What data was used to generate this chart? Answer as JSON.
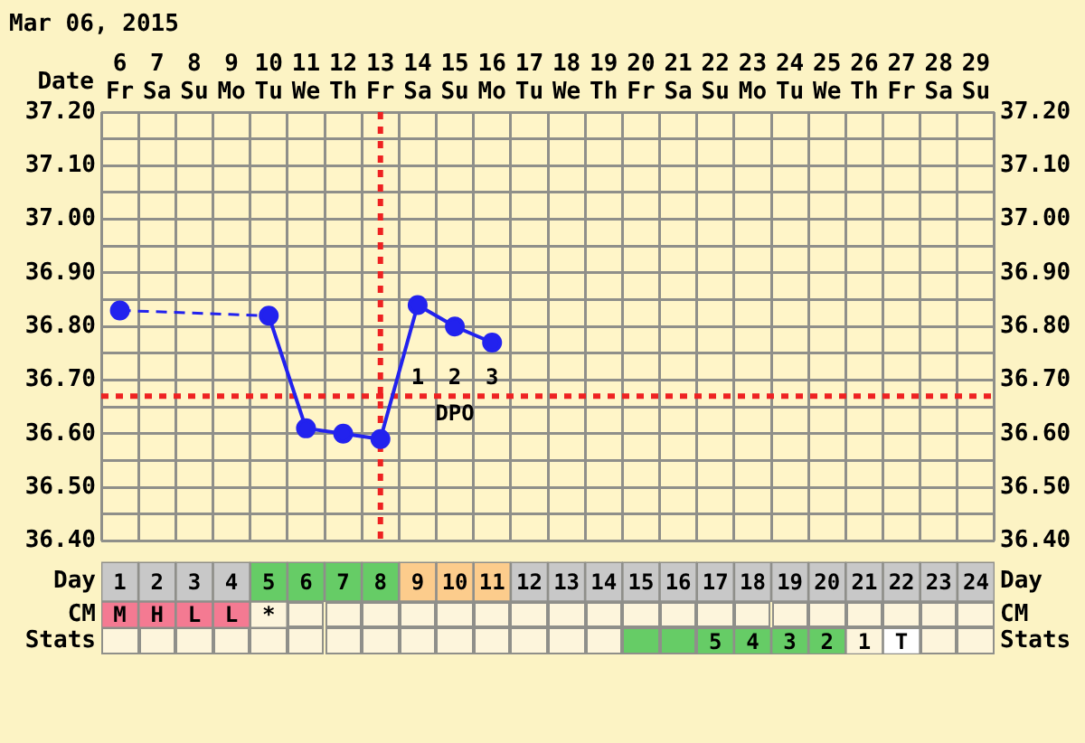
{
  "chart_data": [
    {
      "type": "line",
      "title": "Mar 06, 2015",
      "xlabel": "Date",
      "categories": [
        "6 Fr",
        "7 Sa",
        "8 Su",
        "9 Mo",
        "10 Tu",
        "11 We",
        "12 Th",
        "13 Fr",
        "14 Sa",
        "15 Su",
        "16 Mo",
        "17 Tu",
        "18 We",
        "19 Th",
        "20 Fr",
        "21 Sa",
        "22 Su",
        "23 Mo",
        "24 Tu",
        "25 We",
        "26 Th",
        "27 Fr",
        "28 Sa",
        "29 Su"
      ],
      "series": [
        {
          "color": "#2222ee",
          "values": [
            36.83,
            null,
            null,
            null,
            36.82,
            36.61,
            36.6,
            36.59,
            36.84,
            36.8,
            36.77,
            null,
            null,
            null,
            null,
            null,
            null,
            null,
            null,
            null,
            null,
            null,
            null,
            null
          ]
        }
      ],
      "ylim": [
        36.4,
        37.2
      ],
      "yticks": [
        {
          "value": 36.4,
          "label": "36.40"
        },
        {
          "value": 36.45,
          "label": null
        },
        {
          "value": 36.5,
          "label": "36.50"
        },
        {
          "value": 36.55,
          "label": null
        },
        {
          "value": 36.6,
          "label": "36.60"
        },
        {
          "value": 36.65,
          "label": null
        },
        {
          "value": 36.7,
          "label": "36.70"
        },
        {
          "value": 36.75,
          "label": null
        },
        {
          "value": 36.8,
          "label": "36.80"
        },
        {
          "value": 36.85,
          "label": null
        },
        {
          "value": 36.9,
          "label": "36.90"
        },
        {
          "value": 36.95,
          "label": null
        },
        {
          "value": 37,
          "label": "37.00"
        },
        {
          "value": 37.05,
          "label": null
        },
        {
          "value": 37.1,
          "label": "37.10"
        },
        {
          "value": 37.15,
          "label": null
        },
        {
          "value": 37.2,
          "label": "37.20"
        }
      ],
      "y2lim": [
        36.4,
        37.2
      ],
      "y2ticks": [
        {
          "value": 36.4,
          "label": "36.40"
        },
        {
          "value": 36.45,
          "label": null
        },
        {
          "value": 36.5,
          "label": "36.50"
        },
        {
          "value": 36.55,
          "label": null
        },
        {
          "value": 36.6,
          "label": "36.60"
        },
        {
          "value": 36.65,
          "label": null
        },
        {
          "value": 36.7,
          "label": "36.70"
        },
        {
          "value": 36.75,
          "label": null
        },
        {
          "value": 36.8,
          "label": "36.80"
        },
        {
          "value": 36.85,
          "label": null
        },
        {
          "value": 36.9,
          "label": "36.90"
        },
        {
          "value": 36.95,
          "label": null
        },
        {
          "value": 37,
          "label": "37.00"
        },
        {
          "value": 37.05,
          "label": null
        },
        {
          "value": 37.1,
          "label": "37.10"
        },
        {
          "value": 37.15,
          "label": null
        },
        {
          "value": 37.2,
          "label": "37.20"
        }
      ],
      "grid": true,
      "legend": false,
      "marker": "circle",
      "ref_lines": [
        {
          "axis": "x",
          "value": "13 Fr",
          "color": "#ee2222",
          "line_style": "dotted"
        },
        {
          "axis": "y",
          "value": 36.67,
          "color": "#ee2222",
          "line_style": "dotted"
        }
      ],
      "annotations": [
        {
          "text": "1",
          "x": "14 Sa",
          "y": 36.67
        },
        {
          "text": "2",
          "x": "15 Su",
          "y": 36.67
        },
        {
          "text": "3",
          "x": "16 Mo",
          "y": 36.67
        },
        {
          "text": "DPO",
          "x": "15 Su",
          "y": 36.67
        }
      ]
    },
    {
      "type": "heatmap",
      "categories": [
        null,
        null,
        null,
        null,
        null,
        null,
        null,
        null,
        null,
        null,
        null,
        null,
        null,
        null,
        null,
        null,
        null,
        null,
        null,
        null,
        null,
        null,
        null,
        null
      ],
      "y_categories": [
        "Day",
        "CM",
        "Stats"
      ],
      "y2_categories": [
        "Day",
        "CM",
        "Stats"
      ],
      "cells": [
        [
          null,
          null,
          null,
          null,
          null,
          null,
          null,
          null,
          null,
          null,
          null,
          null,
          null,
          null,
          null,
          null,
          null,
          null,
          null,
          null,
          null,
          null,
          null,
          null
        ],
        [
          null,
          null,
          null,
          null,
          null,
          null,
          null,
          null,
          null,
          null,
          null,
          null,
          null,
          null,
          null,
          null,
          null,
          null,
          null,
          null,
          null,
          null,
          null,
          null
        ],
        [
          null,
          null,
          null,
          null,
          null,
          null,
          null,
          null,
          null,
          null,
          null,
          null,
          null,
          null,
          null,
          null,
          null,
          null,
          null,
          null,
          null,
          null,
          null,
          null
        ]
      ],
      "cell_labels": [
        [
          "1",
          "2",
          "3",
          "4",
          "5",
          "6",
          "7",
          "8",
          "9",
          "10",
          "11",
          "12",
          "13",
          "14",
          "15",
          "16",
          "17",
          "18",
          "19",
          "20",
          "21",
          "22",
          "23",
          "24"
        ],
        [
          "M",
          "H",
          "L",
          "L",
          "*",
          null,
          null,
          null,
          null,
          null,
          null,
          null,
          null,
          null,
          null,
          null,
          null,
          null,
          null,
          null,
          null,
          null,
          null,
          null
        ],
        [
          null,
          null,
          null,
          null,
          null,
          null,
          null,
          null,
          null,
          null,
          null,
          null,
          null,
          null,
          null,
          null,
          "5",
          "4",
          "3",
          "2",
          "1",
          "T",
          null,
          null
        ]
      ],
      "colors": [
        [
          "#c8c8c8",
          "#c8c8c8",
          "#c8c8c8",
          "#c8c8c8",
          "#66cc66",
          "#66cc66",
          "#66cc66",
          "#66cc66",
          "#fccc8c",
          "#fccc8c",
          "#fccc8c",
          "#c8c8c8",
          "#c8c8c8",
          "#c8c8c8",
          "#c8c8c8",
          "#c8c8c8",
          "#c8c8c8",
          "#c8c8c8",
          "#c8c8c8",
          "#c8c8c8",
          "#c8c8c8",
          "#c8c8c8",
          "#c8c8c8",
          "#c8c8c8"
        ],
        [
          "#f47a92",
          "#f47a92",
          "#f47a92",
          "#f47a92",
          "#fdf5dc",
          "#fdf5dc",
          "#fdf5dc",
          "#fdf5dc",
          "#fdf5dc",
          "#fdf5dc",
          "#fdf5dc",
          "#fdf5dc",
          "#fdf5dc",
          "#fdf5dc",
          "#fdf5dc",
          "#fdf5dc",
          "#fdf5dc",
          "#fdf5dc",
          "#fdf5dc",
          "#fdf5dc",
          "#fdf5dc",
          "#fdf5dc",
          "#fdf5dc",
          "#fdf5dc"
        ],
        [
          "#fdf5dc",
          "#fdf5dc",
          "#fdf5dc",
          "#fdf5dc",
          "#fdf5dc",
          "#fdf5dc",
          "#fdf5dc",
          "#fdf5dc",
          "#fdf5dc",
          "#fdf5dc",
          "#fdf5dc",
          "#fdf5dc",
          "#fdf5dc",
          "#fdf5dc",
          "#66cc66",
          "#66cc66",
          "#66cc66",
          "#66cc66",
          "#66cc66",
          "#66cc66",
          "#fdf5dc",
          "#ffffff",
          "#fdf5dc",
          "#fdf5dc"
        ]
      ],
      "tick_labels": "y"
    }
  ]
}
